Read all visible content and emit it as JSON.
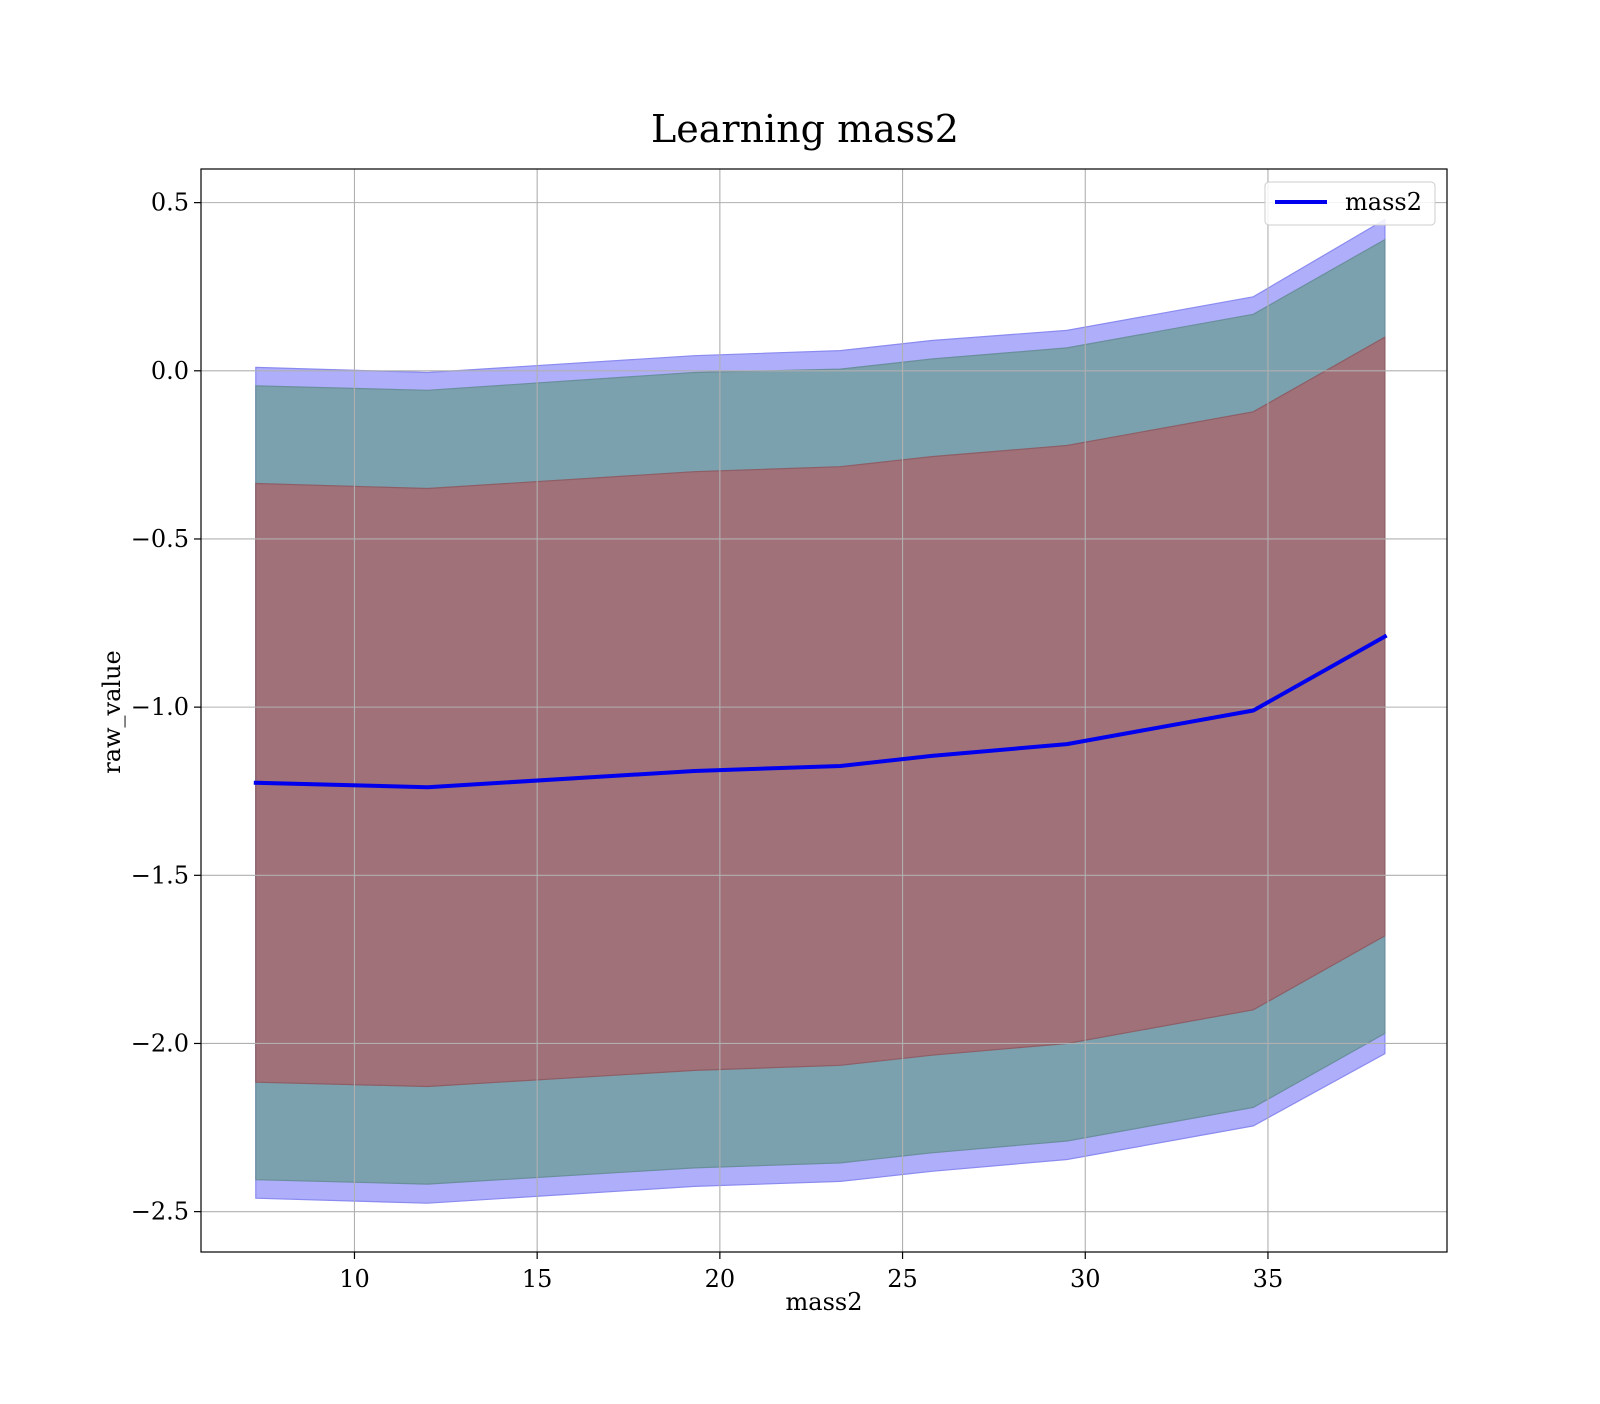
{
  "chart_data": {
    "type": "area",
    "title": "Learning mass2",
    "xlabel": "mass2",
    "ylabel": "raw_value",
    "xlim": [
      5.8,
      39.9
    ],
    "ylim": [
      -2.62,
      0.6
    ],
    "x_ticks": [
      10,
      15,
      20,
      25,
      30,
      35
    ],
    "x_tick_labels": [
      "10",
      "15",
      "20",
      "25",
      "30",
      "35"
    ],
    "y_ticks": [
      0.5,
      0.0,
      -0.5,
      -1.0,
      -1.5,
      -2.0,
      -2.5
    ],
    "y_tick_labels": [
      "0.5",
      "0.0",
      "−0.5",
      "−1.0",
      "−1.5",
      "−2.0",
      "−2.5"
    ],
    "grid": true,
    "legend": {
      "placement": "top-right",
      "entries": [
        "mass2"
      ]
    },
    "x": [
      7.3,
      12.0,
      19.3,
      23.3,
      25.8,
      29.5,
      34.6,
      38.2
    ],
    "series": [
      {
        "name": "mass2",
        "role": "line",
        "color": "#0000ee",
        "values": [
          -1.225,
          -1.238,
          -1.19,
          -1.175,
          -1.145,
          -1.11,
          -1.01,
          -0.79
        ]
      }
    ],
    "bands": [
      {
        "role": "outer-band",
        "color": "#aeaefb",
        "edge_color": "#8a8af0",
        "upper": [
          0.01,
          -0.005,
          0.045,
          0.06,
          0.09,
          0.12,
          0.22,
          0.45
        ],
        "lower": [
          -2.46,
          -2.475,
          -2.425,
          -2.41,
          -2.38,
          -2.345,
          -2.245,
          -2.03
        ]
      },
      {
        "role": "middle-band",
        "color": "#7ba0ae",
        "edge_color": "#6a8f9c",
        "upper": [
          -0.045,
          -0.058,
          -0.005,
          0.005,
          0.035,
          0.068,
          0.168,
          0.39
        ],
        "lower": [
          -2.405,
          -2.418,
          -2.37,
          -2.355,
          -2.325,
          -2.29,
          -2.19,
          -1.97
        ]
      },
      {
        "role": "inner-band",
        "color": "#a07179",
        "edge_color": "#8e5e66",
        "upper": [
          -0.335,
          -0.35,
          -0.3,
          -0.285,
          -0.255,
          -0.222,
          -0.122,
          0.1
        ],
        "lower": [
          -2.115,
          -2.128,
          -2.08,
          -2.065,
          -2.035,
          -2.0,
          -1.9,
          -1.68
        ]
      }
    ]
  }
}
